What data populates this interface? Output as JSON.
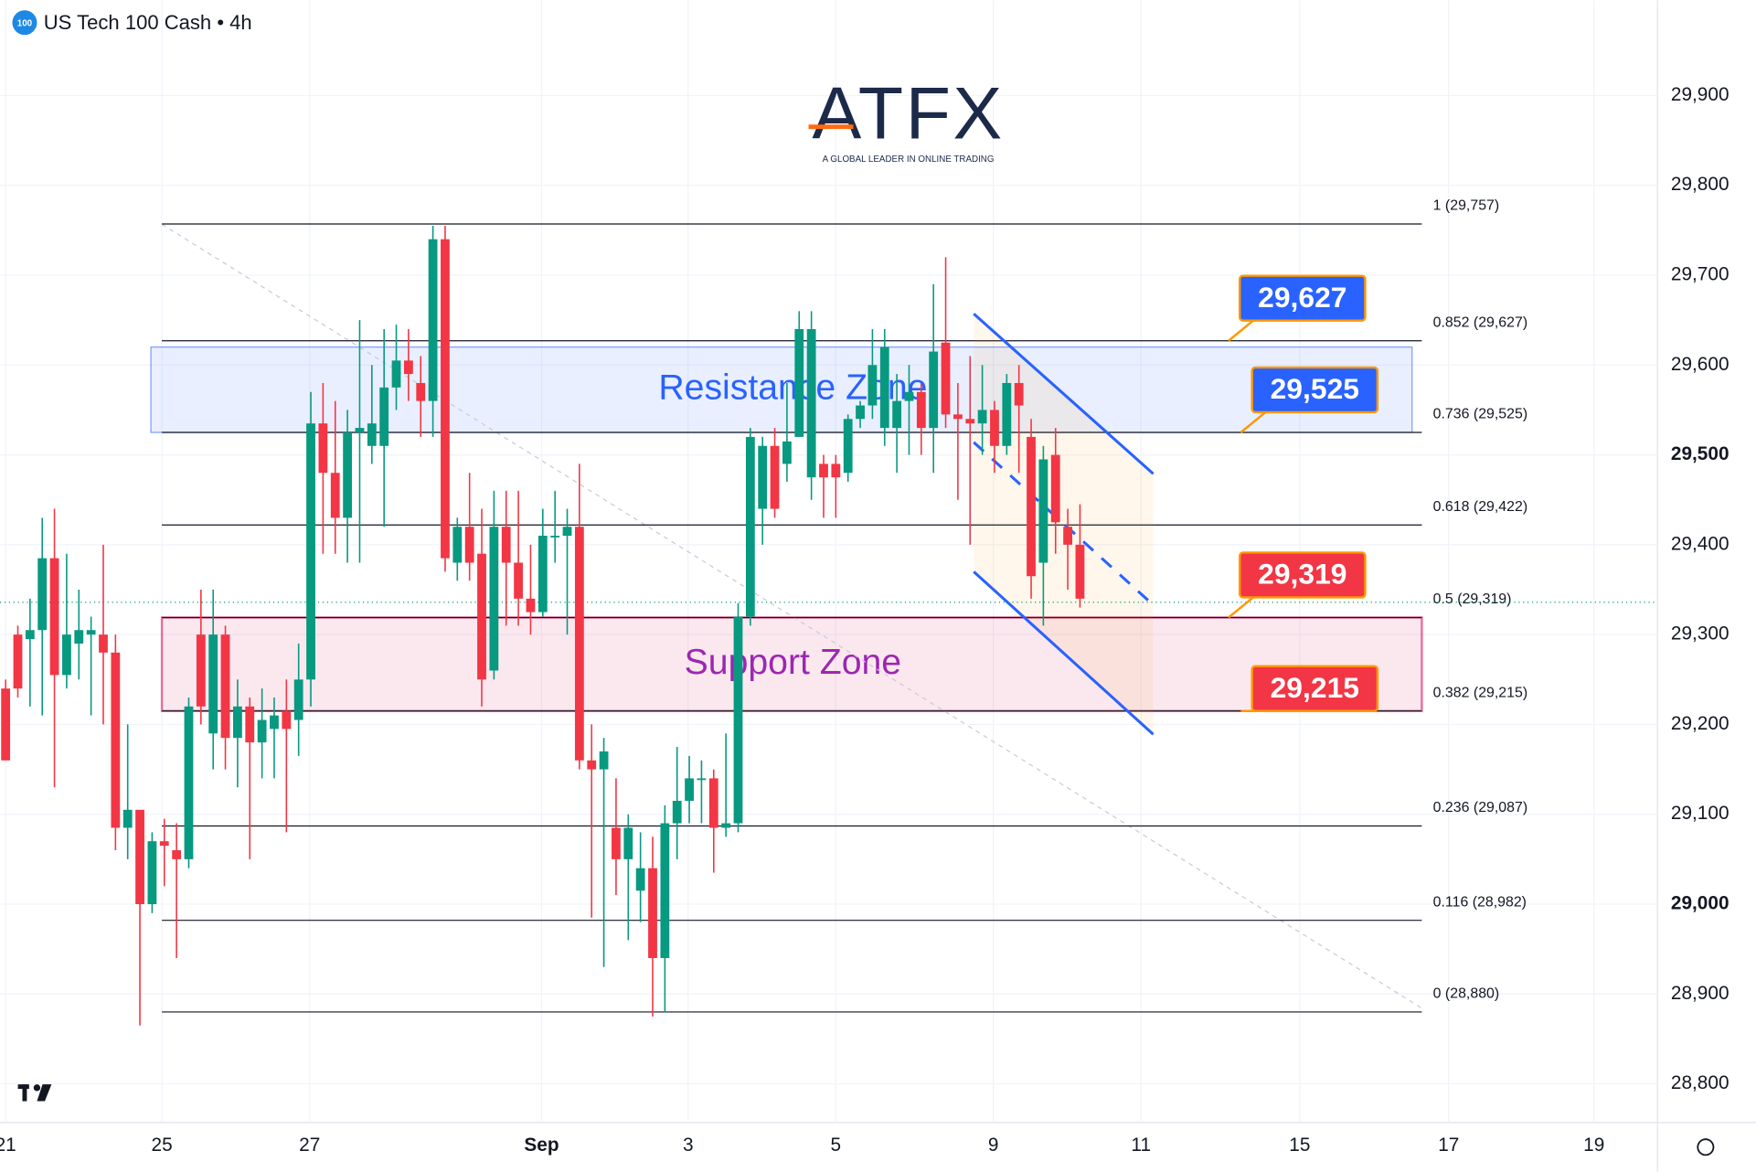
{
  "chart_data": {
    "type": "candlestick",
    "title": "US Tech 100 Cash • 4h",
    "symbol_badge": "100",
    "logo": "ATFX",
    "logo_tagline": "A GLOBAL LEADER IN ONLINE TRADING",
    "up_color": "#089981",
    "down_color": "#f23645",
    "open": [
      29240,
      29300,
      29295,
      29305,
      29385,
      29255,
      29290,
      29300,
      29300,
      29280,
      29085,
      29105,
      29000,
      29070,
      29060,
      29050,
      29300,
      29190,
      29300,
      29185,
      29220,
      29180,
      29195,
      29215,
      29205,
      29250,
      29535,
      29480,
      29430,
      29525,
      29510,
      29510,
      29575,
      29605,
      29580,
      29560,
      29740,
      29380,
      29420,
      29390,
      29260,
      29420,
      29380,
      29340,
      29325,
      29410,
      29410,
      29420,
      29160,
      29150,
      29085,
      29050,
      29015,
      29040,
      28940,
      29090,
      29115,
      29140,
      29140,
      29085,
      29090,
      29320,
      29440,
      29510,
      29490,
      29520,
      29475,
      29490,
      29490,
      29480,
      29540,
      29555,
      29530,
      29530,
      29560,
      29570,
      29530,
      29625,
      29545,
      29540,
      29535,
      29550,
      29510,
      29580,
      29520,
      29380,
      29500,
      29420,
      29400
    ],
    "high": [
      29250,
      29310,
      29340,
      29430,
      29440,
      29390,
      29350,
      29320,
      29400,
      29300,
      29200,
      29100,
      29080,
      29095,
      29090,
      29230,
      29350,
      29350,
      29310,
      29250,
      29230,
      29240,
      29230,
      29250,
      29290,
      29570,
      29580,
      29560,
      29550,
      29650,
      29600,
      29640,
      29645,
      29640,
      29610,
      29755,
      29755,
      29430,
      29480,
      29440,
      29460,
      29460,
      29460,
      29400,
      29440,
      29460,
      29440,
      29490,
      29200,
      29185,
      29140,
      29100,
      29080,
      29075,
      29110,
      29175,
      29165,
      29160,
      29150,
      29190,
      29335,
      29530,
      29520,
      29530,
      29580,
      29660,
      29660,
      29500,
      29500,
      29545,
      29560,
      29640,
      29640,
      29590,
      29600,
      29580,
      29690,
      29720,
      29580,
      29610,
      29600,
      29560,
      29590,
      29600,
      29540,
      29510,
      29530,
      29440,
      29445
    ],
    "low": [
      29160,
      29230,
      29220,
      29210,
      29130,
      29240,
      29250,
      29210,
      29200,
      29060,
      29050,
      28865,
      28990,
      29020,
      28940,
      29040,
      29200,
      29150,
      29150,
      29130,
      29050,
      29140,
      29140,
      29080,
      29165,
      29220,
      29390,
      29390,
      29380,
      29380,
      29490,
      29420,
      29550,
      29560,
      29520,
      29520,
      29370,
      29360,
      29360,
      29220,
      29250,
      29310,
      29310,
      29300,
      29320,
      29380,
      29300,
      29150,
      28985,
      28930,
      29010,
      28960,
      28980,
      28875,
      28880,
      29050,
      29090,
      29090,
      29035,
      29075,
      29080,
      29310,
      29400,
      29430,
      29470,
      29520,
      29450,
      29430,
      29430,
      29470,
      29530,
      29540,
      29510,
      29480,
      29500,
      29500,
      29480,
      29530,
      29450,
      29400,
      29500,
      29480,
      29500,
      29480,
      29340,
      29310,
      29390,
      29350,
      29330
    ],
    "close": [
      29160,
      29240,
      29305,
      29385,
      29255,
      29300,
      29305,
      29305,
      29280,
      29085,
      29105,
      29000,
      29070,
      29065,
      29050,
      29220,
      29220,
      29300,
      29185,
      29220,
      29180,
      29205,
      29210,
      29195,
      29250,
      29535,
      29480,
      29430,
      29525,
      29530,
      29535,
      29575,
      29605,
      29590,
      29560,
      29740,
      29385,
      29420,
      29380,
      29250,
      29420,
      29380,
      29340,
      29325,
      29410,
      29410,
      29420,
      29160,
      29150,
      29170,
      29050,
      29085,
      29040,
      28940,
      29090,
      29115,
      29140,
      29140,
      29085,
      29090,
      29320,
      29520,
      29510,
      29440,
      29515,
      29640,
      29640,
      29475,
      29475,
      29540,
      29555,
      29600,
      29620,
      29560,
      29570,
      29530,
      29615,
      29545,
      29540,
      29535,
      29550,
      29510,
      29580,
      29555,
      29365,
      29495,
      29425,
      29400,
      29340
    ],
    "xlim": [
      -0.46,
      135.3
    ],
    "xticks": [
      {
        "value": 0,
        "label": "21"
      },
      {
        "value": 12.8,
        "label": "25"
      },
      {
        "value": 24.9,
        "label": "27"
      },
      {
        "value": 43.9,
        "label": "Sep"
      },
      {
        "value": 55.9,
        "label": "3"
      },
      {
        "value": 68,
        "label": "5"
      },
      {
        "value": 80.9,
        "label": "9"
      },
      {
        "value": 93,
        "label": "11"
      },
      {
        "value": 106,
        "label": "15"
      },
      {
        "value": 118.2,
        "label": "17"
      },
      {
        "value": 130.1,
        "label": "19"
      }
    ],
    "ylim": [
      28757,
      30006
    ],
    "yticks": [
      {
        "value": 29900,
        "label": "29,900"
      },
      {
        "value": 29800,
        "label": "29,800"
      },
      {
        "value": 29700,
        "label": "29,700"
      },
      {
        "value": 29600,
        "label": "29,600"
      },
      {
        "value": 29500,
        "label": "29,500",
        "bold": true
      },
      {
        "value": 29400,
        "label": "29,400"
      },
      {
        "value": 29300,
        "label": "29,300"
      },
      {
        "value": 29200,
        "label": "29,200"
      },
      {
        "value": 29100,
        "label": "29,100"
      },
      {
        "value": 29000,
        "label": "29,000",
        "bold": true
      },
      {
        "value": 28900,
        "label": "28,900"
      },
      {
        "value": 28800,
        "label": "28,800"
      }
    ],
    "grid": true,
    "last_price": 29336,
    "fib_levels": [
      {
        "value": 29757,
        "label": "1 (29,757)"
      },
      {
        "value": 29627,
        "label": "0.852 (29,627)"
      },
      {
        "value": 29525,
        "label": "0.736 (29,525)"
      },
      {
        "value": 29422,
        "label": "0.618 (29,422)"
      },
      {
        "value": 29319,
        "label": "0.5 (29,319)"
      },
      {
        "value": 29215,
        "label": "0.382 (29,215)"
      },
      {
        "value": 29087,
        "label": "0.236 (29,087)"
      },
      {
        "value": 28982,
        "label": "0.116 (28,982)"
      },
      {
        "value": 28880,
        "label": "0 (28,880)"
      }
    ],
    "zones": [
      {
        "label": "Resistance Zone",
        "from": 29525,
        "to": 29620,
        "color": "#2962ff",
        "text_color": "#2962ff"
      },
      {
        "label": "Support Zone",
        "from": 29215,
        "to": 29319,
        "color": "#d81b60",
        "text_color": "#9c27b0"
      }
    ],
    "price_tags": [
      {
        "value": 29627,
        "label": "29,627",
        "color": "#2962ff"
      },
      {
        "value": 29525,
        "label": "29,525",
        "color": "#2962ff"
      },
      {
        "value": 29319,
        "label": "29,319",
        "color": "#f23645"
      },
      {
        "value": 29215,
        "label": "29,215",
        "color": "#f23645"
      }
    ],
    "channel": {
      "upper": [
        29657,
        29479
      ],
      "middle": [
        29514,
        29333
      ],
      "lower": [
        29370,
        29189
      ]
    }
  }
}
